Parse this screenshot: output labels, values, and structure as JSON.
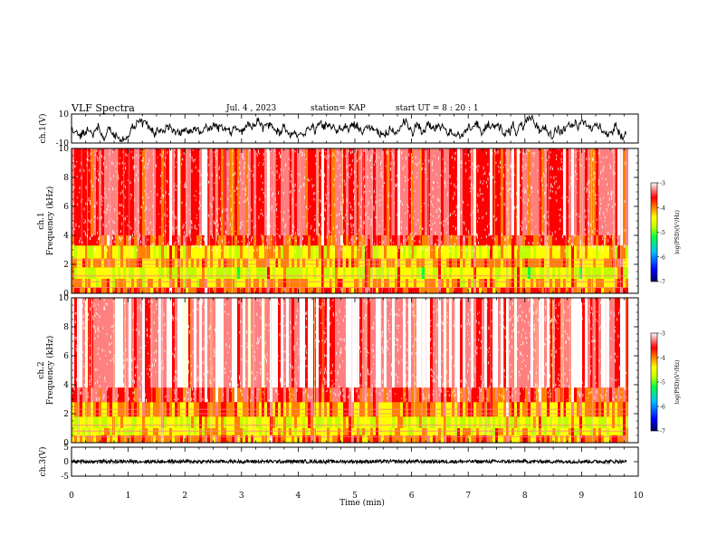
{
  "header": {
    "title": "VLF Spectra",
    "date": "Jul. 4 , 2023",
    "station": "station= KAP",
    "start": "start UT =  8 : 20 : 1"
  },
  "chart_data": [
    {
      "type": "line",
      "panel": "ch1-waveform",
      "ylabel": "ch.1(V)",
      "ylim": [
        -10,
        10
      ],
      "yticks": [
        "10",
        "-10"
      ],
      "xlim": [
        0,
        9.83
      ],
      "description_of_series": "noisy waveform oscillating mostly between -7 and 8 V",
      "color": "#000000"
    },
    {
      "type": "heatmap",
      "panel": "ch1-spectrogram",
      "ylabel": "ch.1\nFrequency (kHz)",
      "ylim": [
        0,
        10
      ],
      "yticks": [
        "0",
        "2",
        "4",
        "6",
        "8",
        "10"
      ],
      "xlim": [
        0,
        10
      ],
      "colorbar": {
        "label": "log(PSD)(V²/Hz)",
        "range": [
          -7,
          -3
        ],
        "ticks": [
          "-3",
          "-4",
          "-5",
          "-6",
          "-7"
        ],
        "colors": [
          "#000080",
          "#0000ff",
          "#00c0ff",
          "#00ff40",
          "#c0ff00",
          "#ffff00",
          "#ff8000",
          "#ff0000",
          "#ff8080",
          "#ffffff"
        ]
      },
      "bands_kHz": [
        {
          "from": 0,
          "to": 0.4,
          "level": -4.2
        },
        {
          "from": 0.4,
          "to": 1.0,
          "level": -4.6
        },
        {
          "from": 1.0,
          "to": 1.8,
          "level": -5.0
        },
        {
          "from": 1.8,
          "to": 2.4,
          "level": -4.5
        },
        {
          "from": 2.4,
          "to": 3.3,
          "level": -4.8
        },
        {
          "from": 3.3,
          "to": 4.0,
          "level": -4.0
        },
        {
          "from": 4.0,
          "to": 10.0,
          "level": -3.7
        }
      ]
    },
    {
      "type": "heatmap",
      "panel": "ch2-spectrogram",
      "ylabel": "ch.2\nFrequency (kHz)",
      "ylim": [
        0,
        10
      ],
      "yticks": [
        "0",
        "2",
        "4",
        "6",
        "8",
        "10"
      ],
      "xlim": [
        0,
        10
      ],
      "colorbar": {
        "label": "log(PSD)(V²/Hz)",
        "range": [
          -7,
          -3
        ],
        "ticks": [
          "-3",
          "-4",
          "-5",
          "-6",
          "-7"
        ],
        "colors": [
          "#000080",
          "#0000ff",
          "#00c0ff",
          "#00ff40",
          "#c0ff00",
          "#ffff00",
          "#ff8000",
          "#ff0000",
          "#ff8080",
          "#ffffff"
        ]
      },
      "bands_kHz": [
        {
          "from": 0,
          "to": 0.5,
          "level": -4.4
        },
        {
          "from": 0.5,
          "to": 1.0,
          "level": -4.8
        },
        {
          "from": 1.0,
          "to": 1.8,
          "level": -4.9
        },
        {
          "from": 1.8,
          "to": 2.8,
          "level": -4.4
        },
        {
          "from": 2.8,
          "to": 3.8,
          "level": -3.9
        },
        {
          "from": 3.8,
          "to": 10.0,
          "level": -3.4
        }
      ]
    },
    {
      "type": "line",
      "panel": "ch3-waveform",
      "ylabel": "ch.3(V)",
      "ylim": [
        -5,
        5
      ],
      "yticks": [
        "5",
        "0",
        "-5"
      ],
      "xlim": [
        0,
        9.83
      ],
      "description_of_series": "dense oscillation between about -0.5 and 0.5 V",
      "color": "#000000"
    }
  ],
  "xaxis": {
    "label": "Time (min)",
    "ticks": [
      "0",
      "1",
      "2",
      "3",
      "4",
      "5",
      "6",
      "7",
      "8",
      "9",
      "10"
    ]
  }
}
